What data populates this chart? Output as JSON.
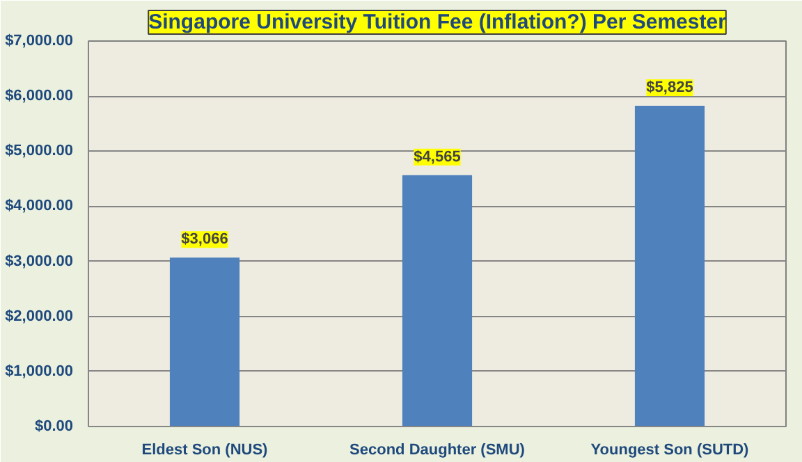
{
  "chart_data": {
    "type": "bar",
    "title": "Singapore University Tuition Fee (Inflation?) Per Semester",
    "categories": [
      "Eldest Son (NUS)",
      "Second Daughter (SMU)",
      "Youngest Son (SUTD)"
    ],
    "values": [
      3066,
      4565,
      5825
    ],
    "value_labels": [
      "$3,066",
      "$4,565",
      "$5,825"
    ],
    "color": "#4f81bd",
    "ylim": [
      0,
      7000
    ],
    "yticks": [
      {
        "value": 0,
        "label": "$0.00"
      },
      {
        "value": 1000,
        "label": "$1,000.00"
      },
      {
        "value": 2000,
        "label": "$2,000.00"
      },
      {
        "value": 3000,
        "label": "$3,000.00"
      },
      {
        "value": 4000,
        "label": "$4,000.00"
      },
      {
        "value": 5000,
        "label": "$5,000.00"
      },
      {
        "value": 6000,
        "label": "$6,000.00"
      },
      {
        "value": 7000,
        "label": "$7,000.00"
      }
    ],
    "grid": "y"
  }
}
